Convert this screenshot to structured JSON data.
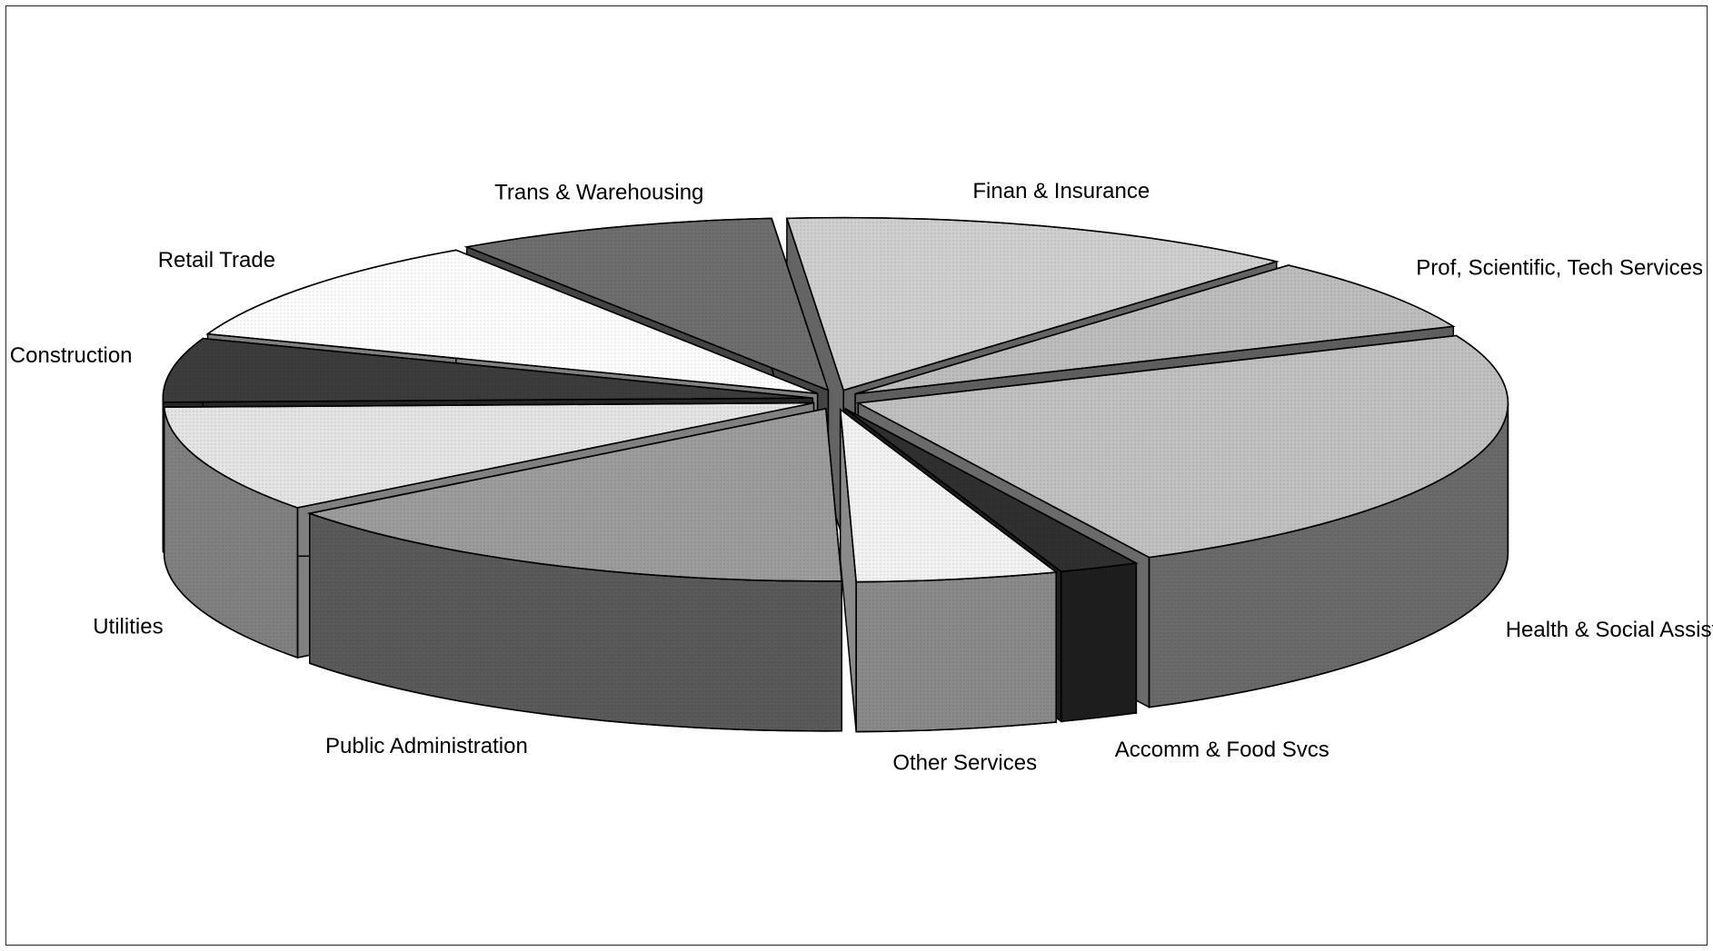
{
  "chart_data": {
    "type": "pie",
    "style": "3d-exploded",
    "title": "",
    "legend": "none",
    "categories": [
      "Health & Social Assist",
      "Accomm & Food Svcs",
      "Other Services",
      "Public Administration",
      "Utilities",
      "Construction",
      "Retail Trade",
      "Trans & Warehousing",
      "Finan & Insurance",
      "Prof, Scientific, Tech Services"
    ],
    "values": [
      24,
      2,
      5,
      15,
      10,
      6,
      10,
      8,
      13,
      7
    ],
    "value_unit": "approximate share (%)",
    "colors": [
      "#c0c0c0",
      "#303030",
      "#f2f2f2",
      "#9c9c9c",
      "#e4e4e4",
      "#3c3c3c",
      "#ffffff",
      "#6e6e6e",
      "#cfcfcf",
      "#bdbdbd"
    ],
    "side_colors": [
      "#6a6a6a",
      "#1e1e1e",
      "#8a8a8a",
      "#5a5a5a",
      "#808080",
      "#262626",
      "#808080",
      "#444444",
      "#646464",
      "#5e5e5e"
    ]
  }
}
